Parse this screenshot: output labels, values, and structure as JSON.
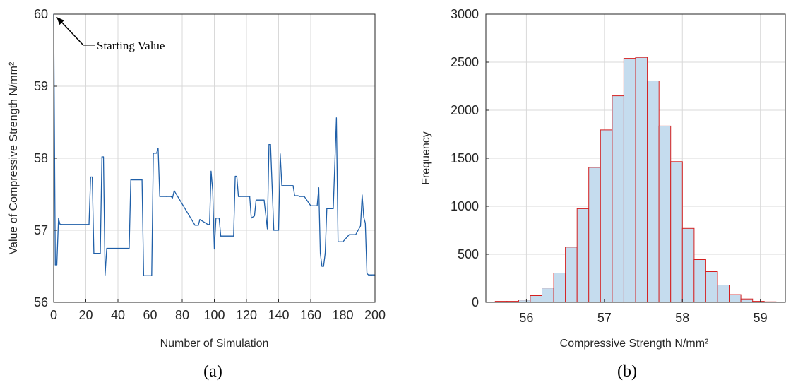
{
  "chart_data": [
    {
      "panel_label": "(a)",
      "type": "line",
      "xlabel": "Number of Simulation",
      "ylabel": "Value of Compressive Strength N/mm²",
      "xlim": [
        0,
        200
      ],
      "ylim": [
        56,
        60
      ],
      "xticks": [
        0,
        20,
        40,
        60,
        80,
        100,
        120,
        140,
        160,
        180,
        200
      ],
      "yticks": [
        56,
        57,
        58,
        59,
        60
      ],
      "grid": true,
      "color": "#1f5fa8",
      "annotation": "Starting Value",
      "series": [
        {
          "x": [
            0,
            1,
            2,
            3,
            4,
            5,
            22,
            23,
            24,
            25,
            29,
            30,
            31,
            32,
            33,
            47,
            48,
            55,
            56,
            61,
            62,
            64,
            65,
            66,
            70,
            73,
            74,
            75,
            88,
            89,
            90,
            91,
            96,
            97,
            98,
            99,
            100,
            101,
            103,
            104,
            112,
            113,
            114,
            115,
            116,
            122,
            123,
            125,
            126,
            131,
            133,
            134,
            135,
            137,
            138,
            140,
            141,
            142,
            143,
            149,
            150,
            152,
            153,
            156,
            160,
            161,
            164,
            165,
            166,
            167,
            168,
            169,
            170,
            171,
            172,
            174,
            176,
            177,
            178,
            179,
            180,
            184,
            185,
            187,
            188,
            191,
            192,
            193,
            194,
            195,
            196,
            197,
            198,
            200
          ],
          "y": [
            60,
            56.52,
            56.52,
            57.16,
            57.08,
            57.08,
            57.08,
            57.74,
            57.74,
            56.68,
            56.68,
            58.02,
            58.02,
            56.38,
            56.75,
            56.75,
            57.7,
            57.7,
            56.37,
            56.37,
            58.07,
            58.07,
            58.14,
            57.47,
            57.47,
            57.47,
            57.45,
            57.55,
            57.07,
            57.07,
            57.07,
            57.15,
            57.08,
            57.08,
            57.82,
            57.55,
            56.74,
            57.17,
            57.17,
            56.92,
            56.92,
            57.75,
            57.75,
            57.47,
            57.47,
            57.47,
            57.17,
            57.2,
            57.42,
            57.42,
            57.02,
            58.19,
            58.19,
            57,
            57,
            57,
            58.06,
            57.62,
            57.62,
            57.62,
            57.48,
            57.48,
            57.47,
            57.47,
            57.34,
            57.34,
            57.34,
            57.59,
            56.68,
            56.5,
            56.5,
            56.68,
            57.3,
            57.3,
            57.3,
            57.3,
            58.56,
            56.84,
            56.84,
            56.84,
            56.84,
            56.94,
            56.94,
            56.94,
            56.94,
            57.06,
            57.49,
            57.18,
            57.1,
            56.4,
            56.38,
            56.38,
            56.38,
            56.38
          ]
        }
      ]
    },
    {
      "panel_label": "(b)",
      "type": "bar",
      "xlabel": "Compressive Strength N/mm²",
      "ylabel": "Frequency",
      "xlim": [
        55.48,
        59.32
      ],
      "ylim": [
        0,
        3000
      ],
      "xticks": [
        56,
        57,
        58,
        59
      ],
      "yticks": [
        0,
        500,
        1000,
        1500,
        2000,
        2500,
        3000
      ],
      "grid": true,
      "bar_fill": "#c5dcee",
      "bar_edge": "#d42020",
      "bin_width": 0.15,
      "bins": [
        55.6,
        55.75,
        55.9,
        56.05,
        56.2,
        56.35,
        56.5,
        56.65,
        56.8,
        56.95,
        57.1,
        57.25,
        57.4,
        57.55,
        57.7,
        57.85,
        58.0,
        58.15,
        58.3,
        58.45,
        58.6,
        58.75,
        58.9,
        59.05
      ],
      "values": [
        10,
        10,
        25,
        70,
        150,
        305,
        575,
        975,
        1405,
        1795,
        2150,
        2540,
        2550,
        2305,
        1835,
        1465,
        770,
        445,
        320,
        180,
        80,
        35,
        10,
        5
      ]
    }
  ]
}
